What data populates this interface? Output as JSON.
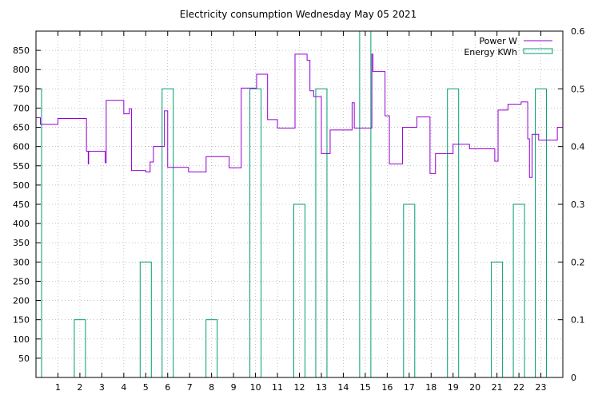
{
  "chart_data": {
    "type": "line",
    "title": "Electricity consumption Wednesday May 05 2021",
    "xlim": [
      0,
      24
    ],
    "x_ticks": [
      1,
      2,
      3,
      4,
      5,
      6,
      7,
      8,
      9,
      10,
      11,
      12,
      13,
      14,
      15,
      16,
      17,
      18,
      19,
      20,
      21,
      22,
      23
    ],
    "y_left": {
      "lim": [
        0,
        900
      ],
      "ticks": [
        50,
        100,
        150,
        200,
        250,
        300,
        350,
        400,
        450,
        500,
        550,
        600,
        650,
        700,
        750,
        800,
        850
      ]
    },
    "y_right": {
      "lim": [
        0,
        0.6
      ],
      "ticks": [
        0,
        0.1,
        0.2,
        0.3,
        0.4,
        0.5,
        0.6
      ]
    },
    "grid": true,
    "legend_position": "top-right",
    "series": [
      {
        "name": "Power W",
        "axis": "left",
        "style": "step",
        "color": "#9400d3",
        "x": [
          0,
          0.2,
          1.0,
          1.9,
          2.3,
          2.3,
          2.38,
          2.38,
          2.4,
          2.4,
          3.15,
          3.15,
          3.2,
          3.2,
          4.0,
          4.0,
          4.25,
          4.25,
          4.35,
          4.35,
          5.0,
          5.0,
          5.2,
          5.2,
          5.35,
          5.35,
          5.85,
          5.85,
          6.0,
          6.0,
          6.3,
          6.3,
          6.95,
          6.95,
          7.4,
          7.4,
          7.75,
          7.75,
          8.6,
          8.6,
          8.8,
          8.8,
          9.35,
          9.35,
          10.05,
          10.05,
          10.55,
          10.55,
          11.0,
          11.0,
          11.8,
          11.8,
          12.35,
          12.35,
          12.48,
          12.48,
          12.65,
          12.65,
          13.0,
          13.0,
          13.4,
          13.4,
          14.4,
          14.4,
          14.5,
          14.5,
          15.3,
          15.3,
          15.35,
          15.35,
          15.35,
          15.35,
          15.9,
          15.9,
          16.1,
          16.1,
          16.3,
          16.3,
          16.7,
          16.7,
          17.35,
          17.35,
          17.95,
          17.95,
          18.2,
          18.2,
          19.0,
          19.0,
          19.75,
          19.75,
          20.0,
          20.0,
          20.9,
          20.9,
          21.05,
          21.05,
          21.5,
          21.5,
          22.1,
          22.1,
          22.4,
          22.4,
          22.48,
          22.48,
          22.6,
          22.6,
          22.9,
          22.9,
          23.2,
          23.2,
          23.75,
          23.75,
          24.0
        ],
        "y": [
          675,
          658,
          673,
          673,
          588,
          588,
          555,
          555,
          588,
          588,
          558,
          558,
          720,
          720,
          685,
          685,
          698,
          698,
          538,
          538,
          534,
          534,
          560,
          560,
          600,
          600,
          693,
          693,
          546,
          546,
          546,
          546,
          534,
          534,
          534,
          534,
          574,
          574,
          574,
          574,
          545,
          545,
          752,
          752,
          788,
          788,
          670,
          670,
          648,
          648,
          840,
          840,
          824,
          824,
          745,
          745,
          730,
          730,
          582,
          582,
          643,
          643,
          714,
          714,
          648,
          648,
          840,
          840,
          823,
          823,
          795,
          795,
          680,
          680,
          555,
          555,
          555,
          555,
          650,
          650,
          677,
          677,
          530,
          530,
          582,
          582,
          606,
          606,
          594,
          594,
          594,
          594,
          562,
          562,
          695,
          695,
          710,
          710,
          716,
          716,
          620,
          620,
          520,
          520,
          632,
          632,
          617,
          617,
          617,
          617,
          650,
          650,
          665
        ]
      },
      {
        "name": "Energy KWh",
        "axis": "right",
        "style": "impulse-bars",
        "color": "#009e73",
        "x": [
          0,
          1,
          2,
          3,
          4,
          5,
          6,
          7,
          8,
          9,
          10,
          11,
          12,
          13,
          14,
          15,
          16,
          17,
          18,
          19,
          20,
          21,
          22,
          23
        ],
        "values": [
          0.5,
          0,
          0.1,
          0,
          0,
          0.2,
          0.5,
          0,
          0.1,
          0,
          0.5,
          0,
          0.3,
          0.5,
          0,
          0.6,
          0,
          0.3,
          0,
          0.5,
          0,
          0.2,
          0.3,
          0.5
        ]
      }
    ]
  }
}
